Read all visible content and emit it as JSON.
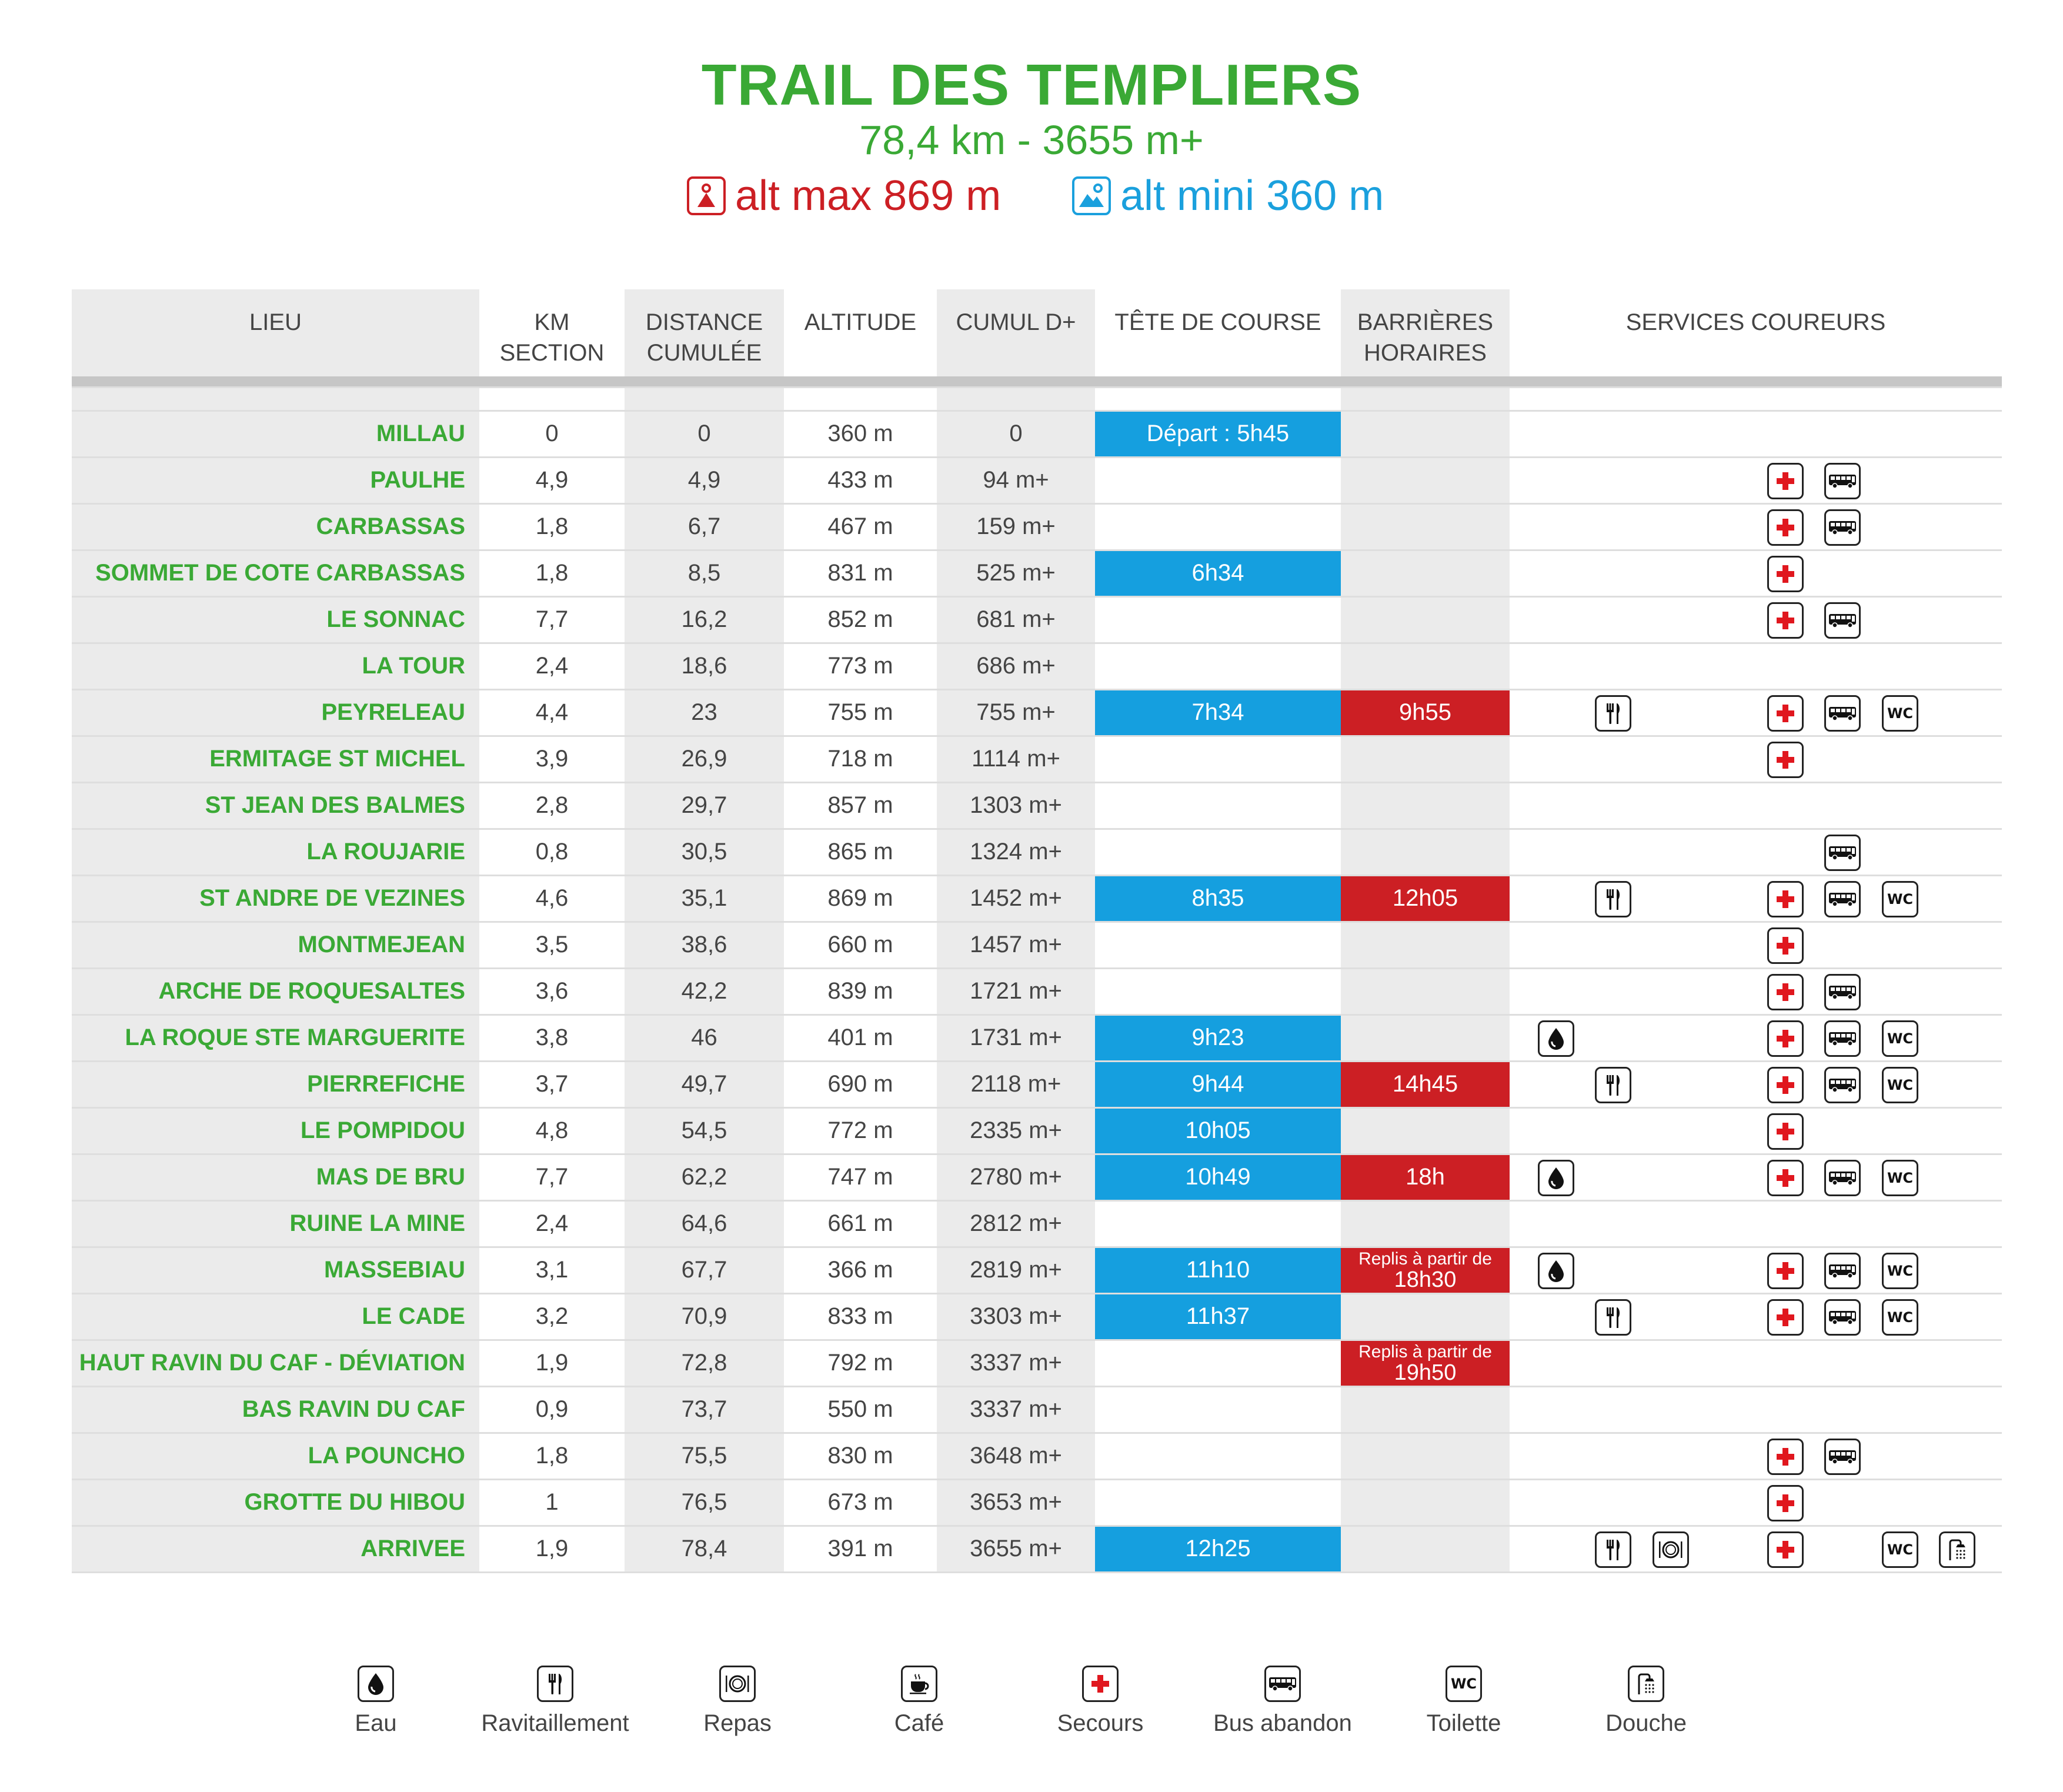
{
  "header": {
    "title": "TRAIL DES TEMPLIERS",
    "subtitle": "78,4 km - 3655 m+",
    "alt_max": "alt max 869 m",
    "alt_min": "alt mini 360 m"
  },
  "colors": {
    "green": "#3aa935",
    "blue": "#159fdf",
    "red": "#cc1f24"
  },
  "columns": {
    "lieu": "LIEU",
    "km1": "KM",
    "km2": "SECTION",
    "dist1": "DISTANCE",
    "dist2": "CUMULÉE",
    "alt": "ALTITUDE",
    "cumul": "CUMUL D+",
    "tete": "TÊTE DE COURSE",
    "barr1": "BARRIÈRES",
    "barr2": "HORAIRES",
    "services": "SERVICES COUREURS"
  },
  "rows": [
    {
      "lieu": "MILLAU",
      "km": "0",
      "dist": "0",
      "alt": "360 m",
      "cumul": "0",
      "tete": "Départ : 5h45",
      "barr": "",
      "barr_note": "",
      "services": []
    },
    {
      "lieu": "PAULHE",
      "km": "4,9",
      "dist": "4,9",
      "alt": "433 m",
      "cumul": "94 m+",
      "tete": "",
      "barr": "",
      "barr_note": "",
      "services": [
        "secours",
        "bus"
      ]
    },
    {
      "lieu": "CARBASSAS",
      "km": "1,8",
      "dist": "6,7",
      "alt": "467 m",
      "cumul": "159 m+",
      "tete": "",
      "barr": "",
      "barr_note": "",
      "services": [
        "secours",
        "bus"
      ]
    },
    {
      "lieu": "SOMMET DE COTE CARBASSAS",
      "km": "1,8",
      "dist": "8,5",
      "alt": "831 m",
      "cumul": "525 m+",
      "tete": "6h34",
      "barr": "",
      "barr_note": "",
      "services": [
        "secours"
      ]
    },
    {
      "lieu": "LE SONNAC",
      "km": "7,7",
      "dist": "16,2",
      "alt": "852 m",
      "cumul": "681 m+",
      "tete": "",
      "barr": "",
      "barr_note": "",
      "services": [
        "secours",
        "bus"
      ]
    },
    {
      "lieu": "LA TOUR",
      "km": "2,4",
      "dist": "18,6",
      "alt": "773 m",
      "cumul": "686 m+",
      "tete": "",
      "barr": "",
      "barr_note": "",
      "services": []
    },
    {
      "lieu": "PEYRELEAU",
      "km": "4,4",
      "dist": "23",
      "alt": "755 m",
      "cumul": "755 m+",
      "tete": "7h34",
      "barr": "9h55",
      "barr_note": "",
      "services": [
        "ravito",
        "secours",
        "bus",
        "wc"
      ]
    },
    {
      "lieu": "ERMITAGE ST MICHEL",
      "km": "3,9",
      "dist": "26,9",
      "alt": "718 m",
      "cumul": "1114 m+",
      "tete": "",
      "barr": "",
      "barr_note": "",
      "services": [
        "secours"
      ]
    },
    {
      "lieu": "ST JEAN DES BALMES",
      "km": "2,8",
      "dist": "29,7",
      "alt": "857 m",
      "cumul": "1303 m+",
      "tete": "",
      "barr": "",
      "barr_note": "",
      "services": []
    },
    {
      "lieu": "LA ROUJARIE",
      "km": "0,8",
      "dist": "30,5",
      "alt": "865 m",
      "cumul": "1324 m+",
      "tete": "",
      "barr": "",
      "barr_note": "",
      "services": [
        "bus"
      ]
    },
    {
      "lieu": "ST ANDRE DE VEZINES",
      "km": "4,6",
      "dist": "35,1",
      "alt": "869 m",
      "cumul": "1452 m+",
      "tete": "8h35",
      "barr": "12h05",
      "barr_note": "",
      "services": [
        "ravito",
        "secours",
        "bus",
        "wc"
      ]
    },
    {
      "lieu": "MONTMEJEAN",
      "km": "3,5",
      "dist": "38,6",
      "alt": "660 m",
      "cumul": "1457 m+",
      "tete": "",
      "barr": "",
      "barr_note": "",
      "services": [
        "secours"
      ]
    },
    {
      "lieu": "ARCHE DE ROQUESALTES",
      "km": "3,6",
      "dist": "42,2",
      "alt": "839 m",
      "cumul": "1721 m+",
      "tete": "",
      "barr": "",
      "barr_note": "",
      "services": [
        "secours",
        "bus"
      ]
    },
    {
      "lieu": "LA ROQUE STE MARGUERITE",
      "km": "3,8",
      "dist": "46",
      "alt": "401 m",
      "cumul": "1731 m+",
      "tete": "9h23",
      "barr": "",
      "barr_note": "",
      "services": [
        "eau",
        "secours",
        "bus",
        "wc"
      ]
    },
    {
      "lieu": "PIERREFICHE",
      "km": "3,7",
      "dist": "49,7",
      "alt": "690 m",
      "cumul": "2118 m+",
      "tete": "9h44",
      "barr": "14h45",
      "barr_note": "",
      "services": [
        "ravito",
        "secours",
        "bus",
        "wc"
      ]
    },
    {
      "lieu": "LE POMPIDOU",
      "km": "4,8",
      "dist": "54,5",
      "alt": "772 m",
      "cumul": "2335 m+",
      "tete": "10h05",
      "barr": "",
      "barr_note": "",
      "services": [
        "secours"
      ]
    },
    {
      "lieu": "MAS DE BRU",
      "km": "7,7",
      "dist": "62,2",
      "alt": "747 m",
      "cumul": "2780 m+",
      "tete": "10h49",
      "barr": "18h",
      "barr_note": "",
      "services": [
        "eau",
        "secours",
        "bus",
        "wc"
      ]
    },
    {
      "lieu": "RUINE LA MINE",
      "km": "2,4",
      "dist": "64,6",
      "alt": "661 m",
      "cumul": "2812 m+",
      "tete": "",
      "barr": "",
      "barr_note": "",
      "services": []
    },
    {
      "lieu": "MASSEBIAU",
      "km": "3,1",
      "dist": "67,7",
      "alt": "366 m",
      "cumul": "2819 m+",
      "tete": "11h10",
      "barr": "18h30",
      "barr_note": "Replis à partir de",
      "services": [
        "eau",
        "secours",
        "bus",
        "wc"
      ]
    },
    {
      "lieu": "LE CADE",
      "km": "3,2",
      "dist": "70,9",
      "alt": "833 m",
      "cumul": "3303 m+",
      "tete": "11h37",
      "barr": "",
      "barr_note": "",
      "services": [
        "ravito",
        "secours",
        "bus",
        "wc"
      ]
    },
    {
      "lieu": "HAUT RAVIN DU CAF - DÉVIATION",
      "km": "1,9",
      "dist": "72,8",
      "alt": "792 m",
      "cumul": "3337 m+",
      "tete": "",
      "barr": "19h50",
      "barr_note": "Replis à partir de",
      "services": []
    },
    {
      "lieu": "BAS RAVIN DU CAF",
      "km": "0,9",
      "dist": "73,7",
      "alt": "550 m",
      "cumul": "3337 m+",
      "tete": "",
      "barr": "",
      "barr_note": "",
      "services": []
    },
    {
      "lieu": "LA POUNCHO",
      "km": "1,8",
      "dist": "75,5",
      "alt": "830 m",
      "cumul": "3648 m+",
      "tete": "",
      "barr": "",
      "barr_note": "",
      "services": [
        "secours",
        "bus"
      ]
    },
    {
      "lieu": "GROTTE DU HIBOU",
      "km": "1",
      "dist": "76,5",
      "alt": "673 m",
      "cumul": "3653 m+",
      "tete": "",
      "barr": "",
      "barr_note": "",
      "services": [
        "secours"
      ]
    },
    {
      "lieu": "ARRIVEE",
      "km": "1,9",
      "dist": "78,4",
      "alt": "391 m",
      "cumul": "3655 m+",
      "tete": "12h25",
      "barr": "",
      "barr_note": "",
      "services": [
        "ravito",
        "repas",
        "secours",
        "wc",
        "douche"
      ]
    }
  ],
  "legend": [
    {
      "key": "eau",
      "label": "Eau",
      "icon": "water-drop-icon"
    },
    {
      "key": "ravito",
      "label": "Ravitaillement",
      "icon": "fork-knife-icon"
    },
    {
      "key": "repas",
      "label": "Repas",
      "icon": "plate-icon"
    },
    {
      "key": "cafe",
      "label": "Café",
      "icon": "coffee-cup-icon"
    },
    {
      "key": "secours",
      "label": "Secours",
      "icon": "red-cross-icon"
    },
    {
      "key": "bus",
      "label": "Bus abandon",
      "icon": "bus-icon"
    },
    {
      "key": "wc",
      "label": "Toilette",
      "icon": "wc-icon",
      "text": "WC"
    },
    {
      "key": "douche",
      "label": "Douche",
      "icon": "shower-icon"
    }
  ]
}
